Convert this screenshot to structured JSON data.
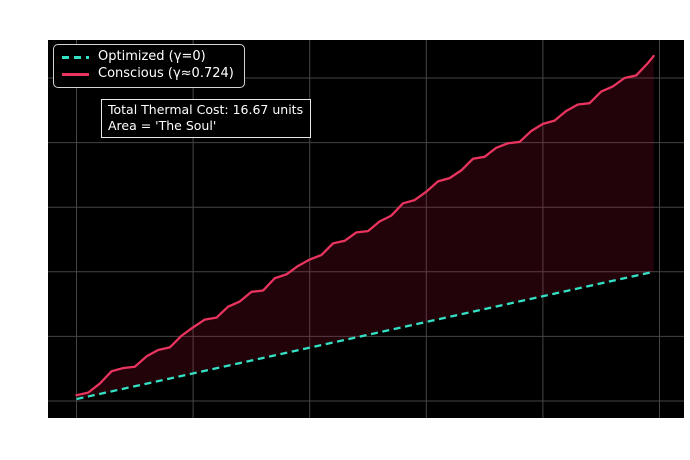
{
  "colors": {
    "figure_background": "#ffffff",
    "axes_background": "#000000",
    "grid": "#454545",
    "optimized_line": "#35e1c5",
    "conscious_line": "#e8345e",
    "fill_between": "rgba(220,20,60,0.16)",
    "legend_border": "#d4d4d4",
    "annotation_border": "#e8e8e8",
    "text": "#ffffff"
  },
  "legend": {
    "items": [
      {
        "label": "Optimized (γ=0)",
        "style": "dashed",
        "color": "#35e1c5"
      },
      {
        "label": "Conscious (γ≈0.724)",
        "style": "solid",
        "color": "#e8345e"
      }
    ]
  },
  "annotation": {
    "lines": [
      "Total Thermal Cost: 16.67 units",
      "Area = 'The Soul'"
    ]
  },
  "chart_data": {
    "type": "line",
    "title": "",
    "xlabel": "",
    "ylabel": "",
    "xlim": [
      -0.5,
      10.5
    ],
    "ylim": [
      -0.28,
      5.85
    ],
    "xticks": [
      0,
      2,
      4,
      6,
      8,
      10
    ],
    "yticks": [
      0,
      1,
      2,
      3,
      4,
      5
    ],
    "tick_labels_shown": false,
    "grid": true,
    "legend_position": "upper left",
    "series": [
      {
        "name": "Optimized (γ=0)",
        "style": "dashed",
        "color": "#35e1c5",
        "x": [
          0,
          9.9
        ],
        "y": [
          0.03,
          2.0
        ]
      },
      {
        "name": "Conscious (γ≈0.724)",
        "style": "solid",
        "color": "#e8345e",
        "x": [
          0,
          0.2,
          0.4,
          0.6,
          0.8,
          1.0,
          1.2,
          1.4,
          1.6,
          1.8,
          2.0,
          2.2,
          2.4,
          2.6,
          2.8,
          3.0,
          3.2,
          3.4,
          3.6,
          3.8,
          4.0,
          4.2,
          4.4,
          4.6,
          4.8,
          5.0,
          5.2,
          5.4,
          5.6,
          5.8,
          6.0,
          6.2,
          6.4,
          6.6,
          6.8,
          7.0,
          7.2,
          7.4,
          7.6,
          7.8,
          8.0,
          8.2,
          8.4,
          8.6,
          8.8,
          9.0,
          9.2,
          9.4,
          9.6,
          9.8,
          9.9
        ],
        "y": [
          0.09,
          0.13,
          0.27,
          0.46,
          0.51,
          0.53,
          0.69,
          0.79,
          0.83,
          1.01,
          1.14,
          1.26,
          1.29,
          1.46,
          1.54,
          1.69,
          1.71,
          1.9,
          1.96,
          2.09,
          2.19,
          2.26,
          2.44,
          2.48,
          2.61,
          2.63,
          2.78,
          2.87,
          3.06,
          3.11,
          3.24,
          3.4,
          3.45,
          3.57,
          3.75,
          3.78,
          3.92,
          3.99,
          4.01,
          4.18,
          4.29,
          4.34,
          4.49,
          4.59,
          4.61,
          4.79,
          4.87,
          5.0,
          5.04,
          5.23,
          5.34
        ]
      }
    ],
    "fill_between": {
      "upper_series": "Conscious (γ≈0.724)",
      "lower_series": "Optimized (γ=0)",
      "color": "#dc143c",
      "alpha": 0.16,
      "meaning": "Total Thermal Cost: 16.67 units, Area = 'The Soul'"
    }
  }
}
